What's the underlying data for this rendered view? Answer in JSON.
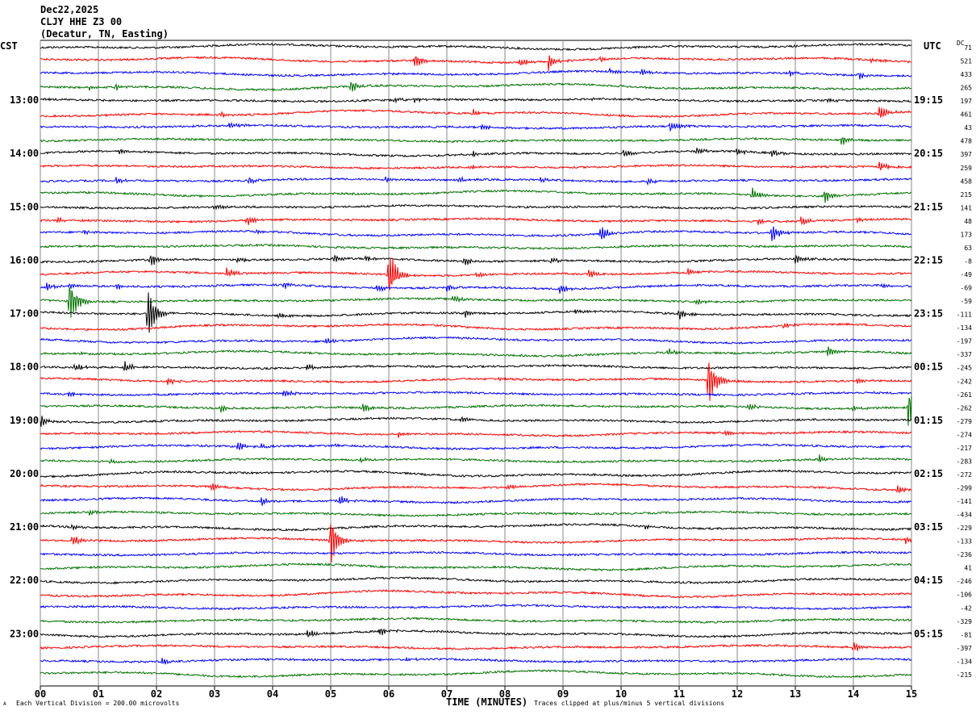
{
  "header": {
    "date": "Dec22,2025",
    "station": "CLJY HHE Z3 00",
    "location": "(Decatur, TN, Easting)"
  },
  "left_tz": "CST",
  "right_tz": "UTC",
  "dc_label": "DC",
  "footer": {
    "scale": "Each Vertical Division =  200.00 microvolts",
    "clip_note": "Traces clipped at plus/minus 5 vertical divisions",
    "logo_mark": "A"
  },
  "colors": {
    "trace_cycle": [
      "#000000",
      "#ff0000",
      "#0000ff",
      "#007000"
    ],
    "grid": "#888888"
  },
  "chart_data": {
    "type": "line",
    "title": "CLJY HHE Z3 00 helicorder",
    "xlabel": "TIME (MINUTES)",
    "xlim": [
      0,
      15
    ],
    "x_ticks": [
      "00",
      "01",
      "02",
      "03",
      "04",
      "05",
      "06",
      "07",
      "08",
      "09",
      "10",
      "11",
      "12",
      "13",
      "14",
      "15"
    ],
    "traces_count": 48,
    "minutes_per_trace": 15,
    "clip_divisions": 5,
    "left_hour_labels": [
      "13:00",
      "14:00",
      "15:00",
      "16:00",
      "17:00",
      "18:00",
      "19:00",
      "20:00",
      "21:00",
      "22:00",
      "23:00"
    ],
    "right_hour_labels": [
      "19:15",
      "20:15",
      "21:15",
      "22:15",
      "23:15",
      "00:15",
      "01:15",
      "02:15",
      "03:15",
      "04:15",
      "05:15"
    ],
    "dc_offsets": [
      71,
      521,
      433,
      265,
      197,
      461,
      43,
      478,
      397,
      259,
      458,
      215,
      141,
      48,
      173,
      63,
      -8,
      -49,
      -69,
      -59,
      -111,
      -134,
      -197,
      -337,
      -245,
      -242,
      -261,
      -262,
      -279,
      -274,
      -217,
      -283,
      -272,
      -299,
      -141,
      -434,
      -229,
      -133,
      -236,
      41,
      -246,
      -106,
      -42,
      -329,
      -81,
      -397,
      -134,
      -215
    ],
    "events": [
      [
        1,
        6.45,
        1.5
      ],
      [
        1,
        8.75,
        1.5
      ],
      [
        1,
        8.25,
        0.8
      ],
      [
        1,
        14.3,
        0.5
      ],
      [
        1,
        9.65,
        0.6
      ],
      [
        2,
        9.8,
        0.6
      ],
      [
        2,
        10.35,
        0.7
      ],
      [
        2,
        14.1,
        0.7
      ],
      [
        2,
        12.9,
        0.5
      ],
      [
        3,
        5.35,
        1.2
      ],
      [
        3,
        0.85,
        0.5
      ],
      [
        3,
        1.3,
        0.6
      ],
      [
        4,
        6.1,
        0.6
      ],
      [
        4,
        6.45,
        0.5
      ],
      [
        4,
        9.5,
        0.4
      ],
      [
        4,
        13.55,
        0.5
      ],
      [
        5,
        14.45,
        1.8
      ],
      [
        5,
        7.45,
        0.6
      ],
      [
        5,
        3.1,
        0.5
      ],
      [
        6,
        10.85,
        1.0
      ],
      [
        6,
        3.25,
        0.7
      ],
      [
        6,
        7.6,
        0.5
      ],
      [
        7,
        13.8,
        1.0
      ],
      [
        8,
        1.35,
        0.5
      ],
      [
        8,
        7.45,
        0.5
      ],
      [
        8,
        10.05,
        0.7
      ],
      [
        8,
        11.3,
        0.8
      ],
      [
        8,
        12.0,
        0.7
      ],
      [
        8,
        12.6,
        0.7
      ],
      [
        9,
        14.45,
        1.0
      ],
      [
        9,
        7.4,
        0.5
      ],
      [
        10,
        3.6,
        0.6
      ],
      [
        10,
        5.95,
        0.5
      ],
      [
        10,
        7.2,
        0.5
      ],
      [
        10,
        8.6,
        0.5
      ],
      [
        10,
        10.45,
        0.6
      ],
      [
        10,
        1.3,
        0.6
      ],
      [
        11,
        12.25,
        1.2
      ],
      [
        11,
        13.5,
        1.4
      ],
      [
        12,
        3.0,
        0.6
      ],
      [
        13,
        3.55,
        1.0
      ],
      [
        13,
        0.3,
        0.6
      ],
      [
        13,
        13.1,
        1.0
      ],
      [
        13,
        12.35,
        0.6
      ],
      [
        13,
        14.05,
        0.4
      ],
      [
        14,
        9.65,
        1.8
      ],
      [
        14,
        12.6,
        1.5
      ],
      [
        14,
        0.75,
        0.6
      ],
      [
        14,
        3.7,
        0.5
      ],
      [
        16,
        1.9,
        1.2
      ],
      [
        16,
        5.05,
        0.8
      ],
      [
        16,
        5.6,
        0.6
      ],
      [
        16,
        7.3,
        0.9
      ],
      [
        16,
        13.0,
        1.0
      ],
      [
        16,
        8.8,
        0.6
      ],
      [
        16,
        3.4,
        0.5
      ],
      [
        17,
        6.0,
        5
      ],
      [
        17,
        3.2,
        1.0
      ],
      [
        17,
        9.45,
        0.8
      ],
      [
        17,
        11.15,
        0.6
      ],
      [
        17,
        7.5,
        0.5
      ],
      [
        18,
        0.1,
        0.8
      ],
      [
        18,
        0.5,
        0.6
      ],
      [
        18,
        1.3,
        0.6
      ],
      [
        18,
        4.2,
        0.7
      ],
      [
        18,
        5.8,
        0.7
      ],
      [
        18,
        7.0,
        0.6
      ],
      [
        18,
        8.95,
        1.0
      ],
      [
        18,
        14.5,
        0.6
      ],
      [
        19,
        0.5,
        4.5
      ],
      [
        19,
        7.1,
        0.9
      ],
      [
        19,
        11.3,
        0.7
      ],
      [
        20,
        1.85,
        5
      ],
      [
        20,
        4.1,
        0.5
      ],
      [
        20,
        11.0,
        1.0
      ],
      [
        20,
        9.2,
        0.5
      ],
      [
        20,
        7.3,
        0.8
      ],
      [
        21,
        12.8,
        0.7
      ],
      [
        22,
        4.9,
        0.8
      ],
      [
        23,
        10.8,
        0.7
      ],
      [
        23,
        13.55,
        1.2
      ],
      [
        23,
        0.7,
        0.4
      ],
      [
        24,
        0.6,
        0.8
      ],
      [
        24,
        1.45,
        1.0
      ],
      [
        24,
        4.6,
        0.6
      ],
      [
        25,
        11.5,
        5
      ],
      [
        25,
        2.2,
        0.7
      ],
      [
        25,
        14.05,
        0.7
      ],
      [
        25,
        7.9,
        0.4
      ],
      [
        26,
        0.5,
        0.6
      ],
      [
        26,
        4.2,
        1.0
      ],
      [
        27,
        3.1,
        0.8
      ],
      [
        27,
        5.55,
        1.0
      ],
      [
        27,
        12.2,
        0.6
      ],
      [
        27,
        14.0,
        0.5
      ],
      [
        27,
        14.95,
        4
      ],
      [
        28,
        0.0,
        1.2
      ],
      [
        28,
        7.25,
        0.6
      ],
      [
        29,
        6.15,
        0.6
      ],
      [
        29,
        11.8,
        0.5
      ],
      [
        30,
        3.4,
        1.0
      ],
      [
        30,
        3.8,
        0.6
      ],
      [
        30,
        5.0,
        0.4
      ],
      [
        31,
        13.4,
        0.8
      ],
      [
        31,
        1.2,
        0.5
      ],
      [
        31,
        5.5,
        0.5
      ],
      [
        33,
        2.95,
        0.8
      ],
      [
        33,
        14.75,
        0.8
      ],
      [
        33,
        8.05,
        0.5
      ],
      [
        34,
        3.8,
        1.0
      ],
      [
        34,
        5.15,
        1.0
      ],
      [
        35,
        0.85,
        0.6
      ],
      [
        36,
        0.55,
        0.5
      ],
      [
        36,
        10.4,
        0.5
      ],
      [
        37,
        0.55,
        1.2
      ],
      [
        37,
        5.0,
        5
      ],
      [
        37,
        14.9,
        0.6
      ],
      [
        44,
        4.6,
        0.8
      ],
      [
        44,
        5.85,
        0.9
      ],
      [
        45,
        14.0,
        1.0
      ],
      [
        46,
        2.1,
        0.8
      ],
      [
        46,
        6.3,
        0.4
      ]
    ]
  }
}
